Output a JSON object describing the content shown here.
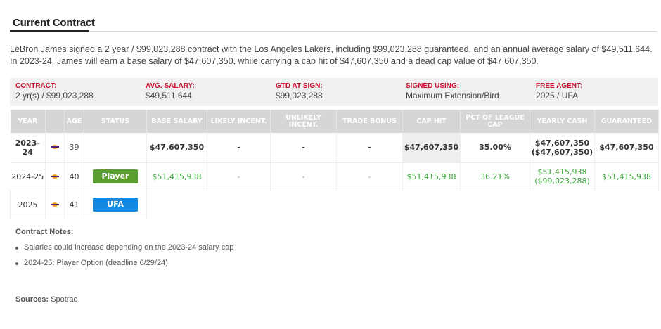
{
  "section": {
    "title": "Current Contract"
  },
  "summary": "LeBron James signed a 2 year / $99,023,288 contract with the Los Angeles Lakers, including $99,023,288 guaranteed, and an annual average salary of $49,511,644. In 2023-24, James will earn a base salary of $47,607,350, while carrying a cap hit of $47,607,350 and a dead cap value of $47,607,350.",
  "info": [
    {
      "label": "CONTRACT:",
      "value": "2 yr(s) / $99,023,288"
    },
    {
      "label": "AVG. SALARY:",
      "value": "$49,511,644"
    },
    {
      "label": "GTD AT SIGN:",
      "value": "$99,023,288"
    },
    {
      "label": "SIGNED USING:",
      "value": "Maximum Extension/Bird"
    },
    {
      "label": "FREE AGENT:",
      "value": "2025 / UFA"
    }
  ],
  "table": {
    "headers": {
      "year": "YEAR",
      "age": "AGE",
      "status": "STATUS",
      "base_salary": "BASE SALARY",
      "likely": "LIKELY INCENT.",
      "unlikely": "UNLIKELY INCENT.",
      "trade": "TRADE BONUS",
      "cap_hit": "CAP HIT",
      "pct": "PCT OF LEAGUE CAP",
      "yearly_cash": "YEARLY CASH",
      "guaranteed": "GUARANTEED"
    },
    "rows": [
      {
        "year": "2023-24",
        "age": "39",
        "status": "",
        "base_salary": "$47,607,350",
        "likely": "-",
        "unlikely": "-",
        "trade": "-",
        "cap_hit": "$47,607,350",
        "pct": "35.00%",
        "yearly_cash": "$47,607,350",
        "yearly_cash_cum": "($47,607,350)",
        "guaranteed": "$47,607,350"
      },
      {
        "year": "2024-25",
        "age": "40",
        "status": "Player",
        "base_salary": "$51,415,938",
        "likely": "-",
        "unlikely": "-",
        "trade": "-",
        "cap_hit": "$51,415,938",
        "pct": "36.21%",
        "yearly_cash": "$51,415,938",
        "yearly_cash_cum": "($99,023,288)",
        "guaranteed": "$51,415,938"
      },
      {
        "year": "2025",
        "age": "41",
        "status": "UFA"
      }
    ]
  },
  "notes": {
    "title": "Contract Notes:",
    "items": [
      "Salaries could increase depending on the 2023-24 salary cap",
      "2024-25: Player Option (deadline 6/29/24)"
    ]
  },
  "sources": {
    "label": "Sources:",
    "value": "Spotrac"
  },
  "colors": {
    "label_red": "#c8102e",
    "future_green": "#3aa53a",
    "player_option": "#5a9e2f",
    "ufa_blue": "#1688e0",
    "team_gold": "#f2a21c",
    "team_purple": "#55257a"
  }
}
